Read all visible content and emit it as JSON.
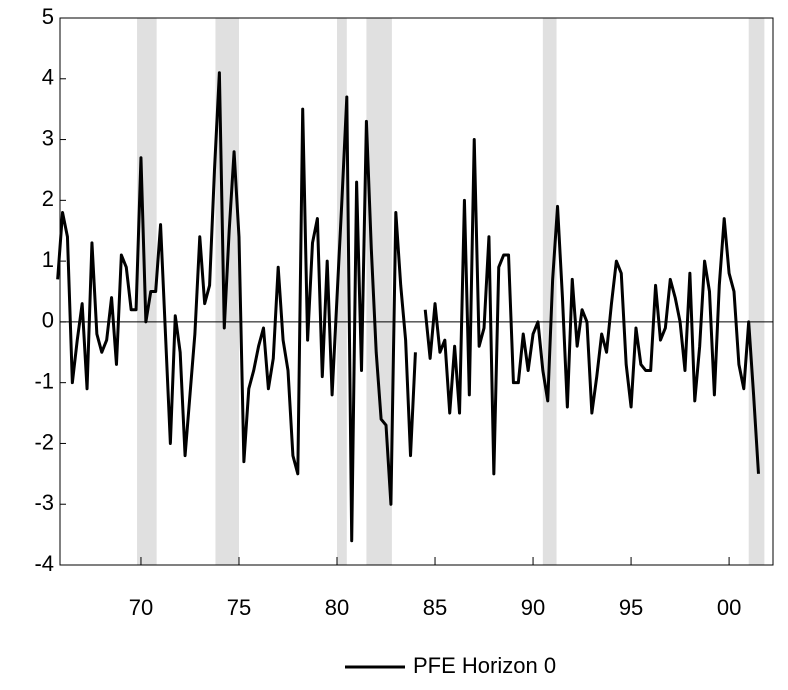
{
  "chart_data": {
    "type": "line",
    "x": [
      1965.75,
      1966,
      1966.25,
      1966.5,
      1966.75,
      1967,
      1967.25,
      1967.5,
      1967.75,
      1968,
      1968.25,
      1968.5,
      1968.75,
      1969,
      1969.25,
      1969.5,
      1969.75,
      1970,
      1970.25,
      1970.5,
      1970.75,
      1971,
      1971.25,
      1971.5,
      1971.75,
      1972,
      1972.25,
      1972.5,
      1972.75,
      1973,
      1973.25,
      1973.5,
      1973.75,
      1974,
      1974.25,
      1974.5,
      1974.75,
      1975,
      1975.25,
      1975.5,
      1975.75,
      1976,
      1976.25,
      1976.5,
      1976.75,
      1977,
      1977.25,
      1977.5,
      1977.75,
      1978,
      1978.25,
      1978.5,
      1978.75,
      1979,
      1979.25,
      1979.5,
      1979.75,
      1980,
      1980.25,
      1980.5,
      1980.75,
      1981,
      1981.25,
      1981.5,
      1981.75,
      1982,
      1982.25,
      1982.5,
      1982.75,
      1983,
      1983.25,
      1983.5,
      1983.75,
      1984,
      1984.25,
      1984.5,
      1984.75,
      1985,
      1985.25,
      1985.5,
      1985.75,
      1986,
      1986.25,
      1986.5,
      1986.75,
      1987,
      1987.25,
      1987.5,
      1987.75,
      1988,
      1988.25,
      1988.5,
      1988.75,
      1989,
      1989.25,
      1989.5,
      1989.75,
      1990,
      1990.25,
      1990.5,
      1990.75,
      1991,
      1991.25,
      1991.5,
      1991.75,
      1992,
      1992.25,
      1992.5,
      1992.75,
      1993,
      1993.25,
      1993.5,
      1993.75,
      1994,
      1994.25,
      1994.5,
      1994.75,
      1995,
      1995.25,
      1995.5,
      1995.75,
      1996,
      1996.25,
      1996.5,
      1996.75,
      1997,
      1997.25,
      1997.5,
      1997.75,
      1998,
      1998.25,
      1998.5,
      1998.75,
      1999,
      1999.25,
      1999.5,
      1999.75,
      2000,
      2000.25,
      2000.5,
      2000.75,
      2001,
      2001.25,
      2001.5
    ],
    "series": [
      {
        "name": "PFE Horizon 0",
        "color": "#000000",
        "values": [
          0.7,
          1.8,
          1.4,
          -1.0,
          -0.3,
          0.3,
          -1.1,
          1.3,
          -0.2,
          -0.5,
          -0.3,
          0.4,
          -0.7,
          1.1,
          0.9,
          0.2,
          0.2,
          2.7,
          0.0,
          0.5,
          0.5,
          1.6,
          -0.2,
          -2.0,
          0.1,
          -0.5,
          -2.2,
          -1.2,
          -0.2,
          1.4,
          0.3,
          0.6,
          2.5,
          4.1,
          -0.1,
          1.5,
          2.8,
          1.4,
          -2.3,
          -1.1,
          -0.8,
          -0.4,
          -0.1,
          -1.1,
          -0.6,
          0.9,
          -0.3,
          -0.8,
          -2.2,
          -2.5,
          3.5,
          -0.3,
          1.3,
          1.7,
          -0.9,
          1.0,
          -1.2,
          0.4,
          2.0,
          3.7,
          -3.6,
          2.3,
          -0.8,
          3.3,
          1.2,
          -0.5,
          -1.6,
          -1.7,
          -3.0,
          1.8,
          0.6,
          -0.3,
          -2.2,
          -0.5,
          null,
          0.2,
          -0.6,
          0.3,
          -0.5,
          -0.3,
          -1.5,
          -0.4,
          -1.5,
          2.0,
          -1.2,
          3.0,
          -0.4,
          -0.1,
          1.4,
          -2.5,
          0.9,
          1.1,
          1.1,
          -1.0,
          -1.0,
          -0.2,
          -0.8,
          -0.2,
          0.0,
          -0.8,
          -1.3,
          0.7,
          1.9,
          0.4,
          -1.4,
          0.7,
          -0.4,
          0.2,
          0.0,
          -1.5,
          -0.9,
          -0.2,
          -0.5,
          0.3,
          1.0,
          0.8,
          -0.7,
          -1.4,
          -0.1,
          -0.7,
          -0.8,
          -0.8,
          0.6,
          -0.3,
          -0.1,
          0.7,
          0.4,
          0.0,
          -0.8,
          0.8,
          -1.3,
          -0.4,
          1.0,
          0.5,
          -1.2,
          0.6,
          1.7,
          0.8,
          0.5,
          -0.7,
          -1.1,
          0.0,
          -1.2,
          -2.5
        ]
      }
    ],
    "shaded_regions": [
      [
        1969.8,
        1970.8
      ],
      [
        1973.8,
        1975.0
      ],
      [
        1980.0,
        1980.5
      ],
      [
        1981.5,
        1982.8
      ],
      [
        1990.5,
        1991.2
      ],
      [
        2001.0,
        2001.8
      ]
    ],
    "shade_color": "#e0e0e0",
    "zero_line": true,
    "xlim": [
      1965.87,
      2002.24
    ],
    "xticks": [
      {
        "value": 1970,
        "label": "70"
      },
      {
        "value": 1975,
        "label": "75"
      },
      {
        "value": 1980,
        "label": "80"
      },
      {
        "value": 1985,
        "label": "85"
      },
      {
        "value": 1990,
        "label": "90"
      },
      {
        "value": 1995,
        "label": "95"
      },
      {
        "value": 2000,
        "label": "00"
      }
    ],
    "ylim": [
      -4,
      5
    ],
    "yticks": [
      -4,
      -3,
      -2,
      -1,
      0,
      1,
      2,
      3,
      4,
      5
    ],
    "legend": "bottom"
  }
}
